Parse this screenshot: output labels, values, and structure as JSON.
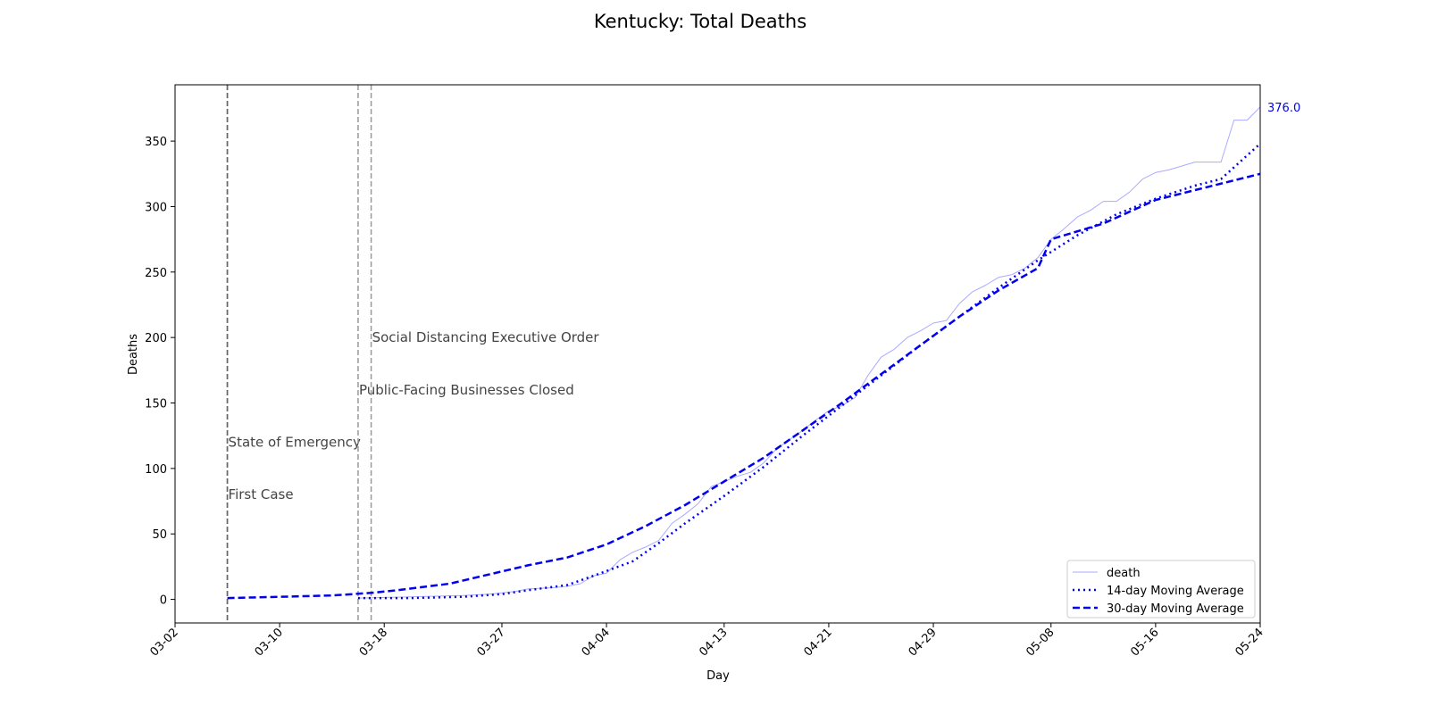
{
  "chart_data": {
    "type": "line",
    "title": "Kentucky: Total Deaths",
    "xlabel": "Day",
    "ylabel": "Deaths",
    "x_ticks": [
      "03-02",
      "03-10",
      "03-18",
      "03-27",
      "04-04",
      "04-13",
      "04-21",
      "04-29",
      "05-08",
      "05-16",
      "05-24"
    ],
    "y_ticks": [
      0,
      50,
      100,
      150,
      200,
      250,
      300,
      350
    ],
    "x_range": [
      "03-02",
      "05-24"
    ],
    "ylim": [
      -18,
      393
    ],
    "grid": false,
    "legend_position": "bottom-right",
    "last_value_label": "376.0",
    "events": [
      {
        "date": "03-06",
        "label": "First Case",
        "label_y": 80,
        "color": "#666666"
      },
      {
        "date": "03-06",
        "label": "State of Emergency",
        "label_y": 120,
        "color": "#666666"
      },
      {
        "date": "03-16",
        "label": "Public-Facing Businesses Closed",
        "label_y": 160,
        "color": "#999999"
      },
      {
        "date": "03-17",
        "label": "Social Distancing Executive Order",
        "label_y": 200,
        "color": "#999999"
      }
    ],
    "series": [
      {
        "name": "death",
        "style": "thin",
        "color": "#aaaaff",
        "points": [
          [
            "03-16",
            1
          ],
          [
            "03-20",
            2
          ],
          [
            "03-24",
            3
          ],
          [
            "03-26",
            4
          ],
          [
            "03-28",
            6
          ],
          [
            "03-29",
            8
          ],
          [
            "03-31",
            9
          ],
          [
            "04-01",
            10
          ],
          [
            "04-02",
            12
          ],
          [
            "04-03",
            18
          ],
          [
            "04-04",
            20
          ],
          [
            "04-05",
            30
          ],
          [
            "04-06",
            36
          ],
          [
            "04-07",
            40
          ],
          [
            "04-08",
            45
          ],
          [
            "04-09",
            58
          ],
          [
            "04-10",
            65
          ],
          [
            "04-11",
            73
          ],
          [
            "04-12",
            86
          ],
          [
            "04-13",
            90
          ],
          [
            "04-14",
            94
          ],
          [
            "04-15",
            97
          ],
          [
            "04-16",
            104
          ],
          [
            "04-17",
            115
          ],
          [
            "04-18",
            122
          ],
          [
            "04-19",
            129
          ],
          [
            "04-20",
            137
          ],
          [
            "04-21",
            144
          ],
          [
            "04-22",
            148
          ],
          [
            "04-23",
            154
          ],
          [
            "04-24",
            171
          ],
          [
            "04-25",
            185
          ],
          [
            "04-26",
            191
          ],
          [
            "04-27",
            200
          ],
          [
            "04-28",
            205
          ],
          [
            "04-29",
            211
          ],
          [
            "04-30",
            213
          ],
          [
            "05-01",
            226
          ],
          [
            "05-02",
            235
          ],
          [
            "05-03",
            240
          ],
          [
            "05-04",
            246
          ],
          [
            "05-05",
            248
          ],
          [
            "05-06",
            253
          ],
          [
            "05-07",
            261
          ],
          [
            "05-08",
            275
          ],
          [
            "05-09",
            283
          ],
          [
            "05-10",
            292
          ],
          [
            "05-11",
            297
          ],
          [
            "05-12",
            304
          ],
          [
            "05-13",
            304
          ],
          [
            "05-14",
            311
          ],
          [
            "05-15",
            321
          ],
          [
            "05-16",
            326
          ],
          [
            "05-17",
            328
          ],
          [
            "05-18",
            331
          ],
          [
            "05-19",
            334
          ],
          [
            "05-20",
            334
          ],
          [
            "05-21",
            334
          ],
          [
            "05-22",
            366
          ],
          [
            "05-23",
            366
          ],
          [
            "05-24",
            376
          ]
        ]
      },
      {
        "name": "14-day Moving Average",
        "style": "dotted",
        "color": "#0000ee",
        "points": [
          [
            "03-16",
            1
          ],
          [
            "03-20",
            1
          ],
          [
            "03-24",
            2
          ],
          [
            "03-27",
            4
          ],
          [
            "03-29",
            7
          ],
          [
            "04-01",
            11
          ],
          [
            "04-03",
            18
          ],
          [
            "04-06",
            29
          ],
          [
            "04-08",
            43
          ],
          [
            "04-10",
            58
          ],
          [
            "04-13",
            79
          ],
          [
            "04-16",
            101
          ],
          [
            "04-19",
            125
          ],
          [
            "04-22",
            148
          ],
          [
            "04-25",
            171
          ],
          [
            "04-28",
            194
          ],
          [
            "05-01",
            216
          ],
          [
            "05-04",
            238
          ],
          [
            "05-07",
            259
          ],
          [
            "05-10",
            278
          ],
          [
            "05-13",
            294
          ],
          [
            "05-16",
            306
          ],
          [
            "05-19",
            316
          ],
          [
            "05-21",
            321
          ],
          [
            "05-24",
            348
          ]
        ]
      },
      {
        "name": "30-day Moving Average",
        "style": "dashed",
        "color": "#0000ee",
        "points": [
          [
            "03-06",
            1
          ],
          [
            "03-10",
            2
          ],
          [
            "03-14",
            3
          ],
          [
            "03-17",
            5
          ],
          [
            "03-19",
            7
          ],
          [
            "03-23",
            12
          ],
          [
            "03-26",
            19
          ],
          [
            "03-29",
            26
          ],
          [
            "04-01",
            32
          ],
          [
            "04-04",
            42
          ],
          [
            "04-07",
            56
          ],
          [
            "04-10",
            72
          ],
          [
            "04-13",
            90
          ],
          [
            "04-16",
            108
          ],
          [
            "04-19",
            129
          ],
          [
            "04-22",
            150
          ],
          [
            "04-25",
            172
          ],
          [
            "04-28",
            194
          ],
          [
            "05-01",
            216
          ],
          [
            "05-04",
            236
          ],
          [
            "05-07",
            253
          ],
          [
            "05-08",
            275
          ],
          [
            "05-12",
            287
          ],
          [
            "05-16",
            305
          ],
          [
            "05-20",
            315
          ],
          [
            "05-24",
            325
          ]
        ]
      }
    ]
  }
}
